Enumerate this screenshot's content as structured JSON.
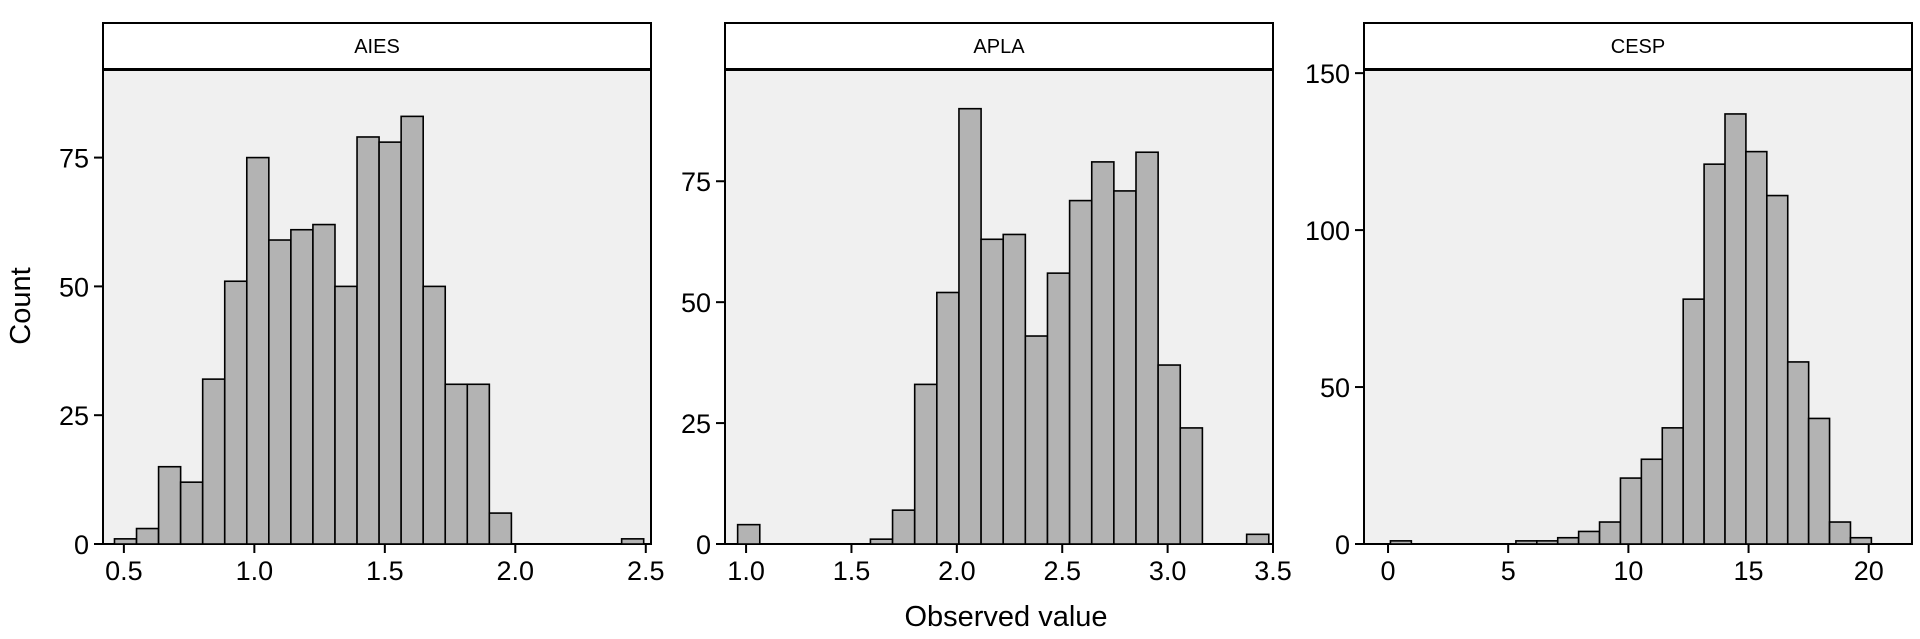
{
  "chart_data": {
    "type": "bar",
    "ylabel": "Count",
    "xlabel": "Observed value",
    "colors": {
      "bar_fill": "#b3b3b3",
      "bar_stroke": "#000000",
      "panel_bg": "#f0f0f0",
      "strip_bg": "#ffffff"
    },
    "panels": [
      {
        "title": "AIES",
        "xlim": [
          0.42,
          2.52
        ],
        "ylim": [
          0,
          92
        ],
        "xticks": [
          0.5,
          1.0,
          1.5,
          2.0,
          2.5
        ],
        "xtick_labels": [
          "0.5",
          "1.0",
          "1.5",
          "2.0",
          "2.5"
        ],
        "yticks": [
          0,
          25,
          50,
          75
        ],
        "ytick_labels": [
          "0",
          "25",
          "50",
          "75"
        ],
        "bin_start": 0.464,
        "bin_width": 0.0845,
        "values": [
          1,
          3,
          15,
          12,
          32,
          51,
          75,
          59,
          61,
          62,
          50,
          79,
          78,
          83,
          50,
          31,
          31,
          6,
          0,
          0,
          0,
          0,
          0,
          1
        ]
      },
      {
        "title": "APLA",
        "xlim": [
          0.9,
          3.5
        ],
        "ylim": [
          0,
          98
        ],
        "xticks": [
          1.0,
          1.5,
          2.0,
          2.5,
          3.0,
          3.5
        ],
        "xtick_labels": [
          "1.0",
          "1.5",
          "2.0",
          "2.5",
          "3.0",
          "3.5"
        ],
        "yticks": [
          0,
          25,
          50,
          75
        ],
        "ytick_labels": [
          "0",
          "25",
          "50",
          "75"
        ],
        "bin_start": 0.96,
        "bin_width": 0.105,
        "values": [
          4,
          0,
          0,
          0,
          0,
          0,
          1,
          7,
          33,
          52,
          90,
          63,
          64,
          43,
          56,
          71,
          79,
          73,
          81,
          37,
          24,
          0,
          0,
          2
        ]
      },
      {
        "title": "CESP",
        "xlim": [
          -1.0,
          21.8
        ],
        "ylim": [
          0,
          151
        ],
        "xticks": [
          0,
          5,
          10,
          15,
          20
        ],
        "xtick_labels": [
          "0",
          "5",
          "10",
          "15",
          "20"
        ],
        "yticks": [
          0,
          50,
          100,
          150
        ],
        "ytick_labels": [
          "0",
          "50",
          "100",
          "150"
        ],
        "bin_start": 0.1,
        "bin_width": 0.87,
        "values": [
          1,
          0,
          0,
          0,
          0,
          0,
          1,
          1,
          2,
          4,
          7,
          21,
          27,
          37,
          78,
          121,
          137,
          125,
          111,
          58,
          40,
          7,
          2
        ]
      }
    ]
  }
}
